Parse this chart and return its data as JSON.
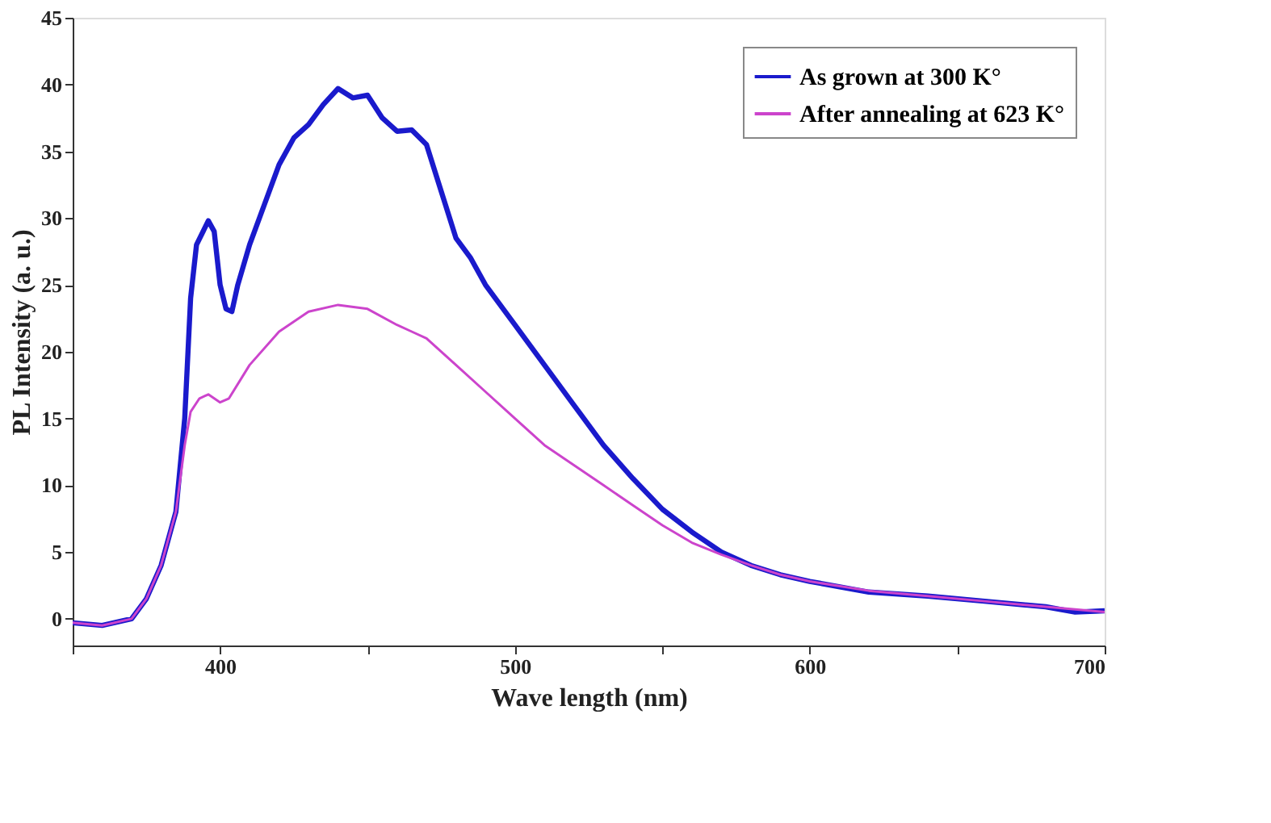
{
  "chart_data": {
    "type": "line",
    "xlabel": "Wave length (nm)",
    "ylabel": "PL Intensity (a. u.)",
    "xlim": [
      350,
      700
    ],
    "xticks": [
      {
        "value": 350,
        "label": null
      },
      400,
      {
        "value": 450,
        "label": null
      },
      500,
      {
        "value": 550,
        "label": null
      },
      600,
      {
        "value": 650,
        "label": null
      },
      700
    ],
    "ylim": [
      -2,
      45
    ],
    "yticks": [
      0,
      5,
      10,
      15,
      20,
      25,
      30,
      35,
      40,
      45
    ],
    "grid": false,
    "legend": "top right",
    "marker": "none",
    "line_style": "solid",
    "series": [
      {
        "name": "As grown at 300 K°",
        "color": "#1a1acc",
        "x": [
          350,
          360,
          370,
          375,
          380,
          385,
          388,
          390,
          392,
          396,
          398,
          400,
          402,
          404,
          406,
          410,
          415,
          420,
          425,
          430,
          435,
          440,
          445,
          450,
          455,
          460,
          465,
          470,
          475,
          480,
          485,
          490,
          500,
          510,
          520,
          530,
          540,
          550,
          560,
          570,
          580,
          590,
          600,
          620,
          640,
          660,
          680,
          690,
          700
        ],
        "values": [
          -0.3,
          -0.5,
          0,
          1.5,
          4,
          8,
          15,
          24,
          28,
          29.8,
          29,
          25,
          23.2,
          23,
          25,
          28,
          31,
          34,
          36,
          37,
          38.5,
          39.7,
          39,
          39.2,
          37.5,
          36.5,
          36.6,
          35.5,
          32,
          28.5,
          27,
          25,
          22,
          19,
          16,
          13,
          10.5,
          8.2,
          6.5,
          5,
          4,
          3.3,
          2.8,
          2,
          1.7,
          1.3,
          0.9,
          0.5,
          0.6
        ]
      },
      {
        "name": "After annealing at 623 K°",
        "color": "#cc44cc",
        "x": [
          350,
          360,
          370,
          375,
          380,
          385,
          388,
          390,
          393,
          396,
          400,
          403,
          410,
          420,
          430,
          440,
          450,
          460,
          465,
          470,
          480,
          490,
          500,
          510,
          520,
          530,
          540,
          550,
          560,
          570,
          580,
          590,
          600,
          620,
          640,
          660,
          680,
          700
        ],
        "values": [
          -0.3,
          -0.5,
          0,
          1.5,
          4,
          8,
          13,
          15.5,
          16.5,
          16.8,
          16.2,
          16.5,
          19,
          21.5,
          23,
          23.5,
          23.2,
          22,
          21.5,
          21,
          19,
          17,
          15,
          13,
          11.5,
          10,
          8.5,
          7,
          5.7,
          4.8,
          4,
          3.3,
          2.8,
          2.1,
          1.7,
          1.3,
          0.9,
          0.5
        ]
      }
    ]
  }
}
